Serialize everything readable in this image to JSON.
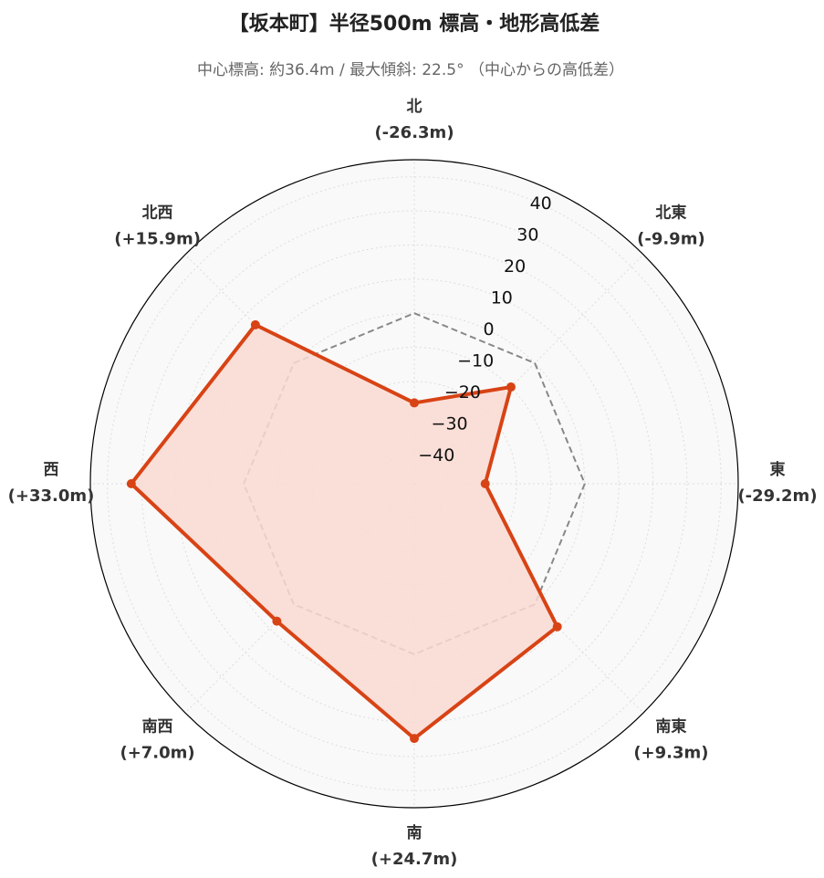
{
  "chart_data": {
    "type": "radar",
    "title": "【坂本町】半径500m 標高・地形高低差",
    "subtitle": "中心標高: 約36.4m / 最大傾斜: 22.5° （中心からの高低差）",
    "categories": [
      "北",
      "北東",
      "東",
      "南東",
      "南",
      "南西",
      "西",
      "北西"
    ],
    "values": [
      -26.3,
      -9.9,
      -29.2,
      9.3,
      24.7,
      7.0,
      33.0,
      15.9
    ],
    "value_labels": [
      "(-26.3m)",
      "(-9.9m)",
      "(-29.2m)",
      "(+9.3m)",
      "(+24.7m)",
      "(+7.0m)",
      "(+33.0m)",
      "(+15.9m)"
    ],
    "color": "#d84315",
    "fill_color": "#fadbd2",
    "reference_value": 0,
    "ylim": [
      -50,
      45
    ],
    "yticks": [
      {
        "value": -40,
        "label": "−40"
      },
      {
        "value": -30,
        "label": "−30"
      },
      {
        "value": -20,
        "label": "−20"
      },
      {
        "value": -10,
        "label": "−10"
      },
      0,
      10,
      20,
      30,
      40
    ],
    "grid": true
  }
}
